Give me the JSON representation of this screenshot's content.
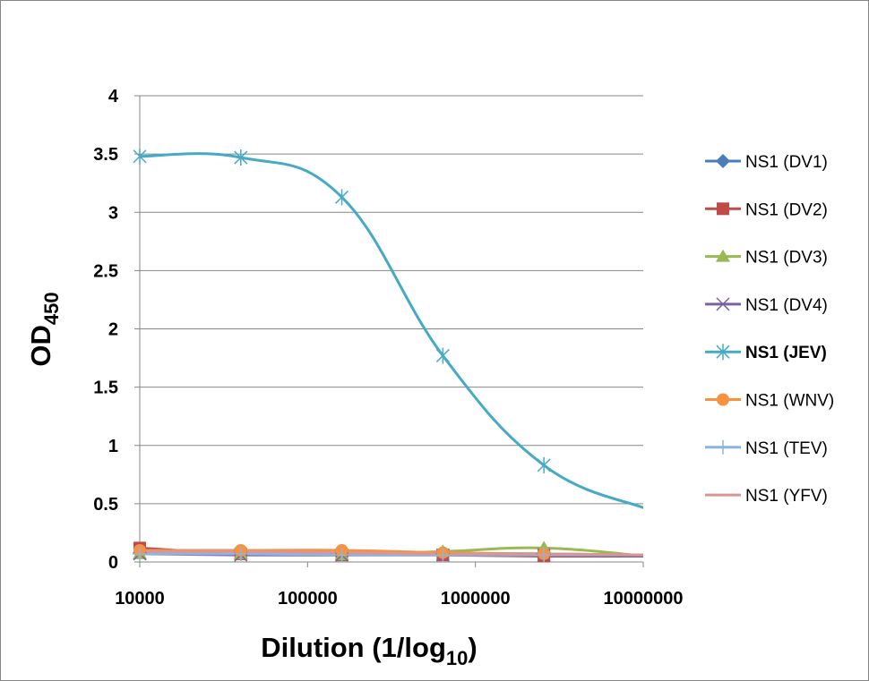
{
  "chart_data": {
    "type": "line",
    "title": "",
    "xlabel": "Dilution (1/log",
    "xlabel_sub": "10",
    "xlabel_close": ")",
    "ylabel": "OD",
    "ylabel_sub": "450",
    "x_scale": "log",
    "xlim": [
      10000,
      10000000
    ],
    "ylim": [
      0,
      4
    ],
    "x_tick_labels": [
      "10000",
      "100000",
      "1000000",
      "10000000"
    ],
    "x_ticks": [
      10000,
      100000,
      1000000,
      10000000
    ],
    "y_tick_labels": [
      "0",
      "0.5",
      "1",
      "1.5",
      "2",
      "2.5",
      "3",
      "3.5",
      "4"
    ],
    "y_ticks": [
      0,
      0.5,
      1,
      1.5,
      2,
      2.5,
      3,
      3.5,
      4
    ],
    "grid": "horizontal",
    "legend_position": "right",
    "x": [
      10000,
      40000,
      160000,
      640000,
      2560000,
      10240000
    ],
    "series": [
      {
        "name": "NS1 (DV1)",
        "color": "#4a7ebb",
        "marker": "diamond",
        "bold": false,
        "values": [
          0.08,
          0.07,
          0.06,
          0.07,
          0.07,
          0.06
        ]
      },
      {
        "name": "NS1 (DV2)",
        "color": "#be4b48",
        "marker": "square",
        "bold": false,
        "values": [
          0.12,
          0.07,
          0.06,
          0.06,
          0.05,
          0.05
        ]
      },
      {
        "name": "NS1 (DV3)",
        "color": "#98b954",
        "marker": "triangle",
        "bold": false,
        "values": [
          0.07,
          0.07,
          0.06,
          0.09,
          0.12,
          0.05
        ]
      },
      {
        "name": "NS1 (DV4)",
        "color": "#7d60a0",
        "marker": "x",
        "bold": false,
        "values": [
          0.07,
          0.06,
          0.06,
          0.06,
          0.06,
          0.05
        ]
      },
      {
        "name": "NS1 (JEV)",
        "color": "#46aac5",
        "marker": "star",
        "bold": true,
        "values": [
          3.48,
          3.47,
          3.13,
          1.77,
          0.83,
          0.46
        ]
      },
      {
        "name": "NS1 (WNV)",
        "color": "#f69240",
        "marker": "circle",
        "bold": false,
        "values": [
          0.1,
          0.1,
          0.1,
          0.08,
          0.07,
          0.06
        ]
      },
      {
        "name": "NS1 (TEV)",
        "color": "#8eb4e3",
        "marker": "plus",
        "bold": false,
        "values": [
          0.07,
          0.07,
          0.06,
          0.06,
          0.06,
          0.06
        ]
      },
      {
        "name": "NS1 (YFV)",
        "color": "#d99694",
        "marker": "none",
        "bold": false,
        "values": [
          0.09,
          0.09,
          0.08,
          0.07,
          0.07,
          0.06
        ]
      }
    ]
  }
}
